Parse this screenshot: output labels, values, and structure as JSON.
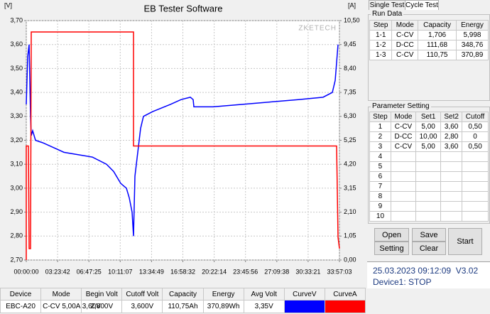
{
  "chart_data": {
    "type": "line",
    "title": "EB Tester Software",
    "y_label": "[V]",
    "y2_label": "[A]",
    "watermark": "ZKETECH",
    "xlim": [
      0,
      122223
    ],
    "ylim": [
      2.7,
      3.7
    ],
    "y2lim": [
      0,
      10.5
    ],
    "grid": true,
    "xticks": [
      {
        "value": 0,
        "label": "00:00:00"
      },
      {
        "value": 12222,
        "label": "03:23:42"
      },
      {
        "value": 24445,
        "label": "06:47:25"
      },
      {
        "value": 36667,
        "label": "10:11:07"
      },
      {
        "value": 48889,
        "label": "13:34:49"
      },
      {
        "value": 61112,
        "label": "16:58:32"
      },
      {
        "value": 73334,
        "label": "20:22:14"
      },
      {
        "value": 85556,
        "label": "23:45:56"
      },
      {
        "value": 97778,
        "label": "27:09:38"
      },
      {
        "value": 110001,
        "label": "30:33:21"
      },
      {
        "value": 122223,
        "label": "33:57:03"
      }
    ],
    "yticks": [
      {
        "value": 2.7,
        "label": "2,70"
      },
      {
        "value": 2.8,
        "label": "2,80"
      },
      {
        "value": 2.9,
        "label": "2,90"
      },
      {
        "value": 3.0,
        "label": "3,00"
      },
      {
        "value": 3.1,
        "label": "3,10"
      },
      {
        "value": 3.2,
        "label": "3,20"
      },
      {
        "value": 3.3,
        "label": "3,30"
      },
      {
        "value": 3.4,
        "label": "3,40"
      },
      {
        "value": 3.5,
        "label": "3,50"
      },
      {
        "value": 3.6,
        "label": "3,60"
      },
      {
        "value": 3.7,
        "label": "3,70"
      }
    ],
    "y2ticks": [
      {
        "value": 0,
        "label": "0,00"
      },
      {
        "value": 1.05,
        "label": "1,05"
      },
      {
        "value": 2.1,
        "label": "2,10"
      },
      {
        "value": 3.15,
        "label": "3,15"
      },
      {
        "value": 4.2,
        "label": "4,20"
      },
      {
        "value": 5.25,
        "label": "5,25"
      },
      {
        "value": 6.3,
        "label": "6,30"
      },
      {
        "value": 7.35,
        "label": "7,35"
      },
      {
        "value": 8.4,
        "label": "8,40"
      },
      {
        "value": 9.45,
        "label": "9,45"
      },
      {
        "value": 10.5,
        "label": "10,50"
      }
    ],
    "series": [
      {
        "color": "#0000ff",
        "axis": "y",
        "x": [
          0,
          554,
          1109,
          1663,
          1940,
          2494,
          3603,
          6374,
          10532,
          14689,
          20232,
          25775,
          31318,
          34089,
          36861,
          39078,
          40187,
          41295,
          41849,
          42404,
          43513,
          44621,
          45730,
          49333,
          56262,
          60419,
          64023,
          65131,
          65409,
          72892,
          83977,
          95063,
          106148,
          115849,
          119451,
          120560,
          121669
        ],
        "values": [
          3.35,
          3.55,
          3.6,
          3.3,
          3.22,
          3.24,
          3.2,
          3.19,
          3.17,
          3.15,
          3.14,
          3.13,
          3.1,
          3.07,
          3.02,
          3.0,
          2.96,
          2.9,
          2.8,
          3.05,
          3.15,
          3.25,
          3.3,
          3.32,
          3.35,
          3.37,
          3.38,
          3.37,
          3.34,
          3.34,
          3.35,
          3.36,
          3.37,
          3.38,
          3.4,
          3.45,
          3.6
        ]
      },
      {
        "color": "#ff0000",
        "axis": "y2",
        "x": [
          0,
          0,
          831,
          1109,
          1663,
          1940,
          41849,
          41849,
          121115,
          121669,
          122223
        ],
        "values": [
          0,
          5.0,
          5.0,
          0.5,
          0.5,
          10.0,
          10.0,
          5.0,
          5.0,
          1.0,
          0.5
        ]
      }
    ]
  },
  "tabs": [
    "Single Test",
    "Cycle Test"
  ],
  "run_data": {
    "title": "Run Data",
    "columns": [
      "Step",
      "Mode",
      "Capacity",
      "Energy"
    ],
    "rows": [
      [
        "1-1",
        "C-CV",
        "1,706",
        "5,998"
      ],
      [
        "1-2",
        "D-CC",
        "111,68",
        "348,76"
      ],
      [
        "1-3",
        "C-CV",
        "110,75",
        "370,89"
      ]
    ]
  },
  "parameter_setting": {
    "title": "Parameter Setting",
    "columns": [
      "Step",
      "Mode",
      "Set1",
      "Set2",
      "Cutoff"
    ],
    "rows": [
      [
        "1",
        "C-CV",
        "5,00",
        "3,60",
        "0,50"
      ],
      [
        "2",
        "D-CC",
        "10,00",
        "2,80",
        "0"
      ],
      [
        "3",
        "C-CV",
        "5,00",
        "3,60",
        "0,50"
      ],
      [
        "4"
      ],
      [
        "5"
      ],
      [
        "6"
      ],
      [
        "7"
      ],
      [
        "8"
      ],
      [
        "9"
      ],
      [
        "10"
      ]
    ]
  },
  "buttons": {
    "open": "Open",
    "save": "Save",
    "setting": "Setting",
    "clear": "Clear",
    "start": "Start"
  },
  "status": {
    "datetime": "25.03.2023 09:12:09",
    "version": "V3.02",
    "device": "Device1: STOP"
  },
  "device_table": {
    "columns": [
      "Device",
      "Mode",
      "Begin Volt",
      "Cutoff Volt",
      "Capacity",
      "Energy",
      "Avg Volt",
      "CurveV",
      "CurveA"
    ],
    "rows": [
      [
        "EBC-A20",
        "C-CV 5,00A 3,60V",
        "2,800V",
        "3,600V",
        "110,75Ah",
        "370,89Wh",
        "3,35V"
      ]
    ]
  }
}
